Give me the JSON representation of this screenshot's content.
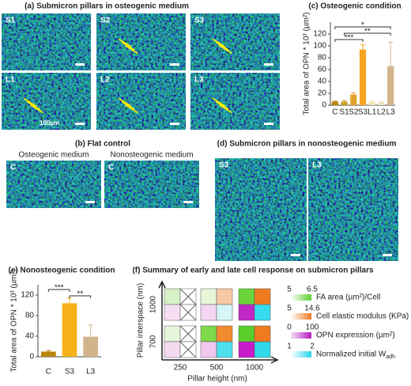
{
  "panel_a": {
    "title": "(a) Submicron pillars in osteogenic medium",
    "labels": [
      "S1",
      "S2",
      "S3",
      "L1",
      "L2",
      "L3"
    ],
    "scale_label": "100µm"
  },
  "panel_b": {
    "title": "(b) Flat control",
    "captions": [
      "Osteogenic medium",
      "Nonosteogenic medium"
    ],
    "labels": [
      "C",
      "C"
    ]
  },
  "panel_d": {
    "title": "(d) Submicron pillars in nonosteogenic medium",
    "labels": [
      "S3",
      "L3"
    ]
  },
  "chart_data": [
    {
      "type": "bar",
      "title": "(c) Osteogenic condition",
      "y_label": "Total area of OPN * 10³ (µm²)",
      "categories": [
        "C",
        "S1",
        "S2",
        "S3",
        "L1",
        "L2",
        "L3"
      ],
      "values": [
        6,
        6,
        18,
        94,
        6,
        5,
        66
      ],
      "errors": [
        1,
        2,
        3,
        8,
        1,
        1,
        40
      ],
      "colors": [
        "#b8860b",
        "#c9a227",
        "#e0a32a",
        "#f5a623",
        "#f3e6b8",
        "#efe2c6",
        "#d2b48c"
      ],
      "ylim": [
        0,
        140
      ],
      "yticks": [
        0,
        20,
        40,
        60,
        80,
        100,
        120
      ],
      "annotations": [
        {
          "text": "*",
          "from": "C",
          "to": "L3"
        },
        {
          "text": "**",
          "from": "S1",
          "to": "L3"
        },
        {
          "text": "***",
          "from": "C",
          "to": "S3"
        }
      ]
    },
    {
      "type": "bar",
      "title": "(e) Nonosteogenic condition",
      "y_label": "Total area of OPN * 10³ (µm²)",
      "categories": [
        "C",
        "S3",
        "L3"
      ],
      "values": [
        10,
        104,
        39
      ],
      "errors": [
        2,
        10,
        23
      ],
      "colors": [
        "#b8860b",
        "#f5b21a",
        "#d2b48c"
      ],
      "ylim": [
        0,
        140
      ],
      "yticks": [
        0,
        40,
        80,
        120
      ],
      "annotations": [
        {
          "text": "***",
          "from": "C",
          "to": "S3"
        },
        {
          "text": "**",
          "from": "S3",
          "to": "L3"
        }
      ]
    }
  ],
  "panel_f": {
    "title": "(f) Summary of early and late cell response on submicron pillars",
    "x_label": "Pillar height (nm)",
    "y_label": "Pillar interspace (nm)",
    "x_ticks": [
      "250",
      "500",
      "1000"
    ],
    "y_ticks": [
      "1000",
      "700"
    ],
    "legend": [
      {
        "min": 5,
        "max": 6.5,
        "label": "FA area (µm²)/Cell"
      },
      {
        "min": 5,
        "max": 14.6,
        "label": "Cell elastic modulus (KPa)"
      },
      {
        "min": 0,
        "max": 100,
        "label": "OPN expression (µm²)"
      },
      {
        "min": 1,
        "max": 2,
        "label": "Normalized initial W",
        "label_sub": "adh"
      }
    ]
  }
}
